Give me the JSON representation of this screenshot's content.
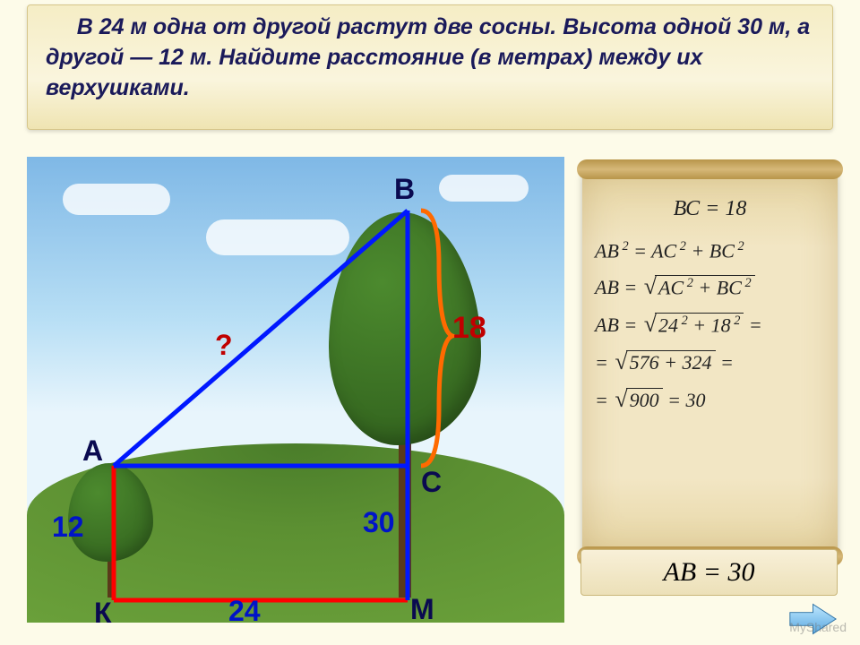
{
  "problem": "В 24 м одна от другой растут две сосны. Высота одной 30 м, а другой — 12 м. Найдите расстояние (в метрах) между их верхушками.",
  "diagram": {
    "points": {
      "A": "А",
      "B": "В",
      "C": "С",
      "K": "К",
      "M": "М"
    },
    "numbers": {
      "twelve": "12",
      "twentyfour": "24",
      "thirty": "30",
      "eighteen": "18"
    },
    "question_mark": "?",
    "line_colors": {
      "red": "#ff0000",
      "blue": "#0018ff",
      "orange": "#ff6a00"
    },
    "line_width": 5
  },
  "solution": {
    "bc_line": "ВС = 18",
    "eq1_html": "<i>AB</i><sup>&nbsp;2</sup> = <i>AC</i><sup>&nbsp;2</sup> + <i>BC</i><sup>&nbsp;2</sup>",
    "eq2_html": "<i>AB</i> = <span class='sqrt'><span class='rad'><i>AC</i><sup>&nbsp;2</sup> + <i>BC</i><sup>&nbsp;2</sup></span></span>",
    "eq3_html": "<i>AB</i> = <span class='sqrt'><span class='rad'>24<sup>&nbsp;2</sup> + 18<sup>&nbsp;2</sup></span></span> =",
    "eq4_html": "= <span class='sqrt'><span class='rad'>576 + 324</span></span> =",
    "eq5_html": "= <span class='sqrt'><span class='rad'>900</span></span> = 30",
    "answer": "АВ = 30"
  },
  "watermark": "MyShared",
  "colors": {
    "sky_top": "#7fb8e6",
    "sky_bottom": "#e8f5fc",
    "grass": "#5c9032",
    "scroll_bg": "#f2e6c4"
  }
}
